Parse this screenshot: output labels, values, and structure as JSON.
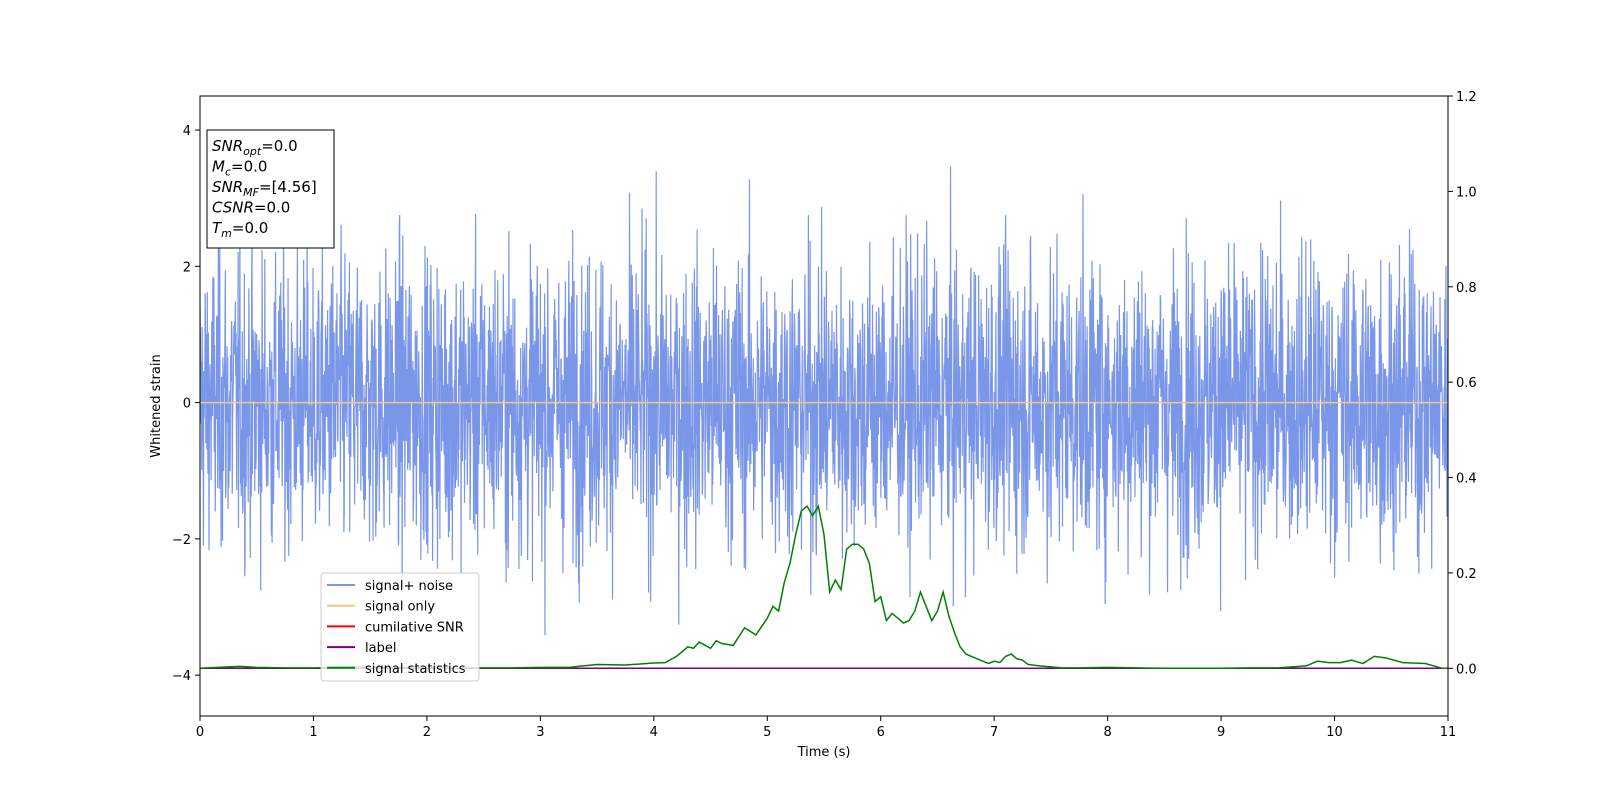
{
  "chart_data": {
    "type": "line",
    "xlabel": "Time (s)",
    "ylabel": "Whitened strain",
    "xlim": [
      0,
      11
    ],
    "ylim_left": [
      -4.6,
      4.5
    ],
    "ylim_right": [
      -0.1,
      1.2
    ],
    "x_ticks": [
      0,
      1,
      2,
      3,
      4,
      5,
      6,
      7,
      8,
      9,
      10,
      11
    ],
    "y_ticks_left": [
      -4,
      -2,
      0,
      2,
      4
    ],
    "y_ticks_right": [
      "0.0",
      "0.2",
      "0.4",
      "0.6",
      "0.8",
      "1.0",
      "1.2"
    ],
    "grid": false,
    "legend_placement": "lower-left",
    "info_box": {
      "placement": "top-left",
      "lines": [
        {
          "base": "SNR",
          "sub": "opt",
          "value": "=0.0"
        },
        {
          "base": "M",
          "sub": "c",
          "value": "=0.0"
        },
        {
          "base": "SNR",
          "sub": "MF",
          "value": "=[4.56]"
        },
        {
          "base": "CSNR",
          "sub": "",
          "value": "=0.0"
        },
        {
          "base": "T",
          "sub": "m",
          "value": "=0.0"
        }
      ]
    },
    "series": [
      {
        "name": "signal+ noise",
        "color": "#7a96e8",
        "axis": "left",
        "description_values": "dense white noise, amplitude about ±2, peaks to about ±4",
        "envelope": {
          "typical_max": 1.4,
          "typical_min": -1.4,
          "extreme_max": 3.9,
          "extreme_min": -4.1
        }
      },
      {
        "name": "signal only",
        "color": "#f5c77e",
        "axis": "left",
        "x": [
          0,
          11
        ],
        "y": [
          0,
          0
        ]
      },
      {
        "name": "cumilative SNR",
        "color": "#ff0000",
        "axis": "right",
        "x": [
          0,
          11
        ],
        "y": [
          0,
          0
        ]
      },
      {
        "name": "label",
        "color": "#800080",
        "axis": "right",
        "x": [
          0,
          11
        ],
        "y": [
          0,
          0
        ]
      },
      {
        "name": "signal statistics",
        "color": "#008000",
        "axis": "right",
        "x": [
          0,
          0.25,
          0.35,
          0.5,
          0.75,
          1.0,
          1.25,
          1.5,
          1.75,
          2.0,
          2.25,
          2.5,
          2.75,
          3.0,
          3.25,
          3.5,
          3.75,
          4.0,
          4.1,
          4.2,
          4.25,
          4.3,
          4.35,
          4.4,
          4.5,
          4.55,
          4.6,
          4.7,
          4.8,
          4.9,
          5.0,
          5.05,
          5.1,
          5.15,
          5.2,
          5.25,
          5.3,
          5.35,
          5.4,
          5.45,
          5.5,
          5.55,
          5.6,
          5.65,
          5.7,
          5.75,
          5.8,
          5.85,
          5.9,
          5.95,
          6.0,
          6.05,
          6.1,
          6.15,
          6.2,
          6.25,
          6.3,
          6.35,
          6.4,
          6.45,
          6.5,
          6.55,
          6.6,
          6.65,
          6.7,
          6.75,
          6.8,
          6.85,
          6.9,
          6.95,
          7.0,
          7.05,
          7.1,
          7.15,
          7.2,
          7.25,
          7.3,
          7.4,
          7.5,
          7.6,
          7.75,
          8.0,
          8.25,
          8.5,
          8.75,
          9.0,
          9.25,
          9.5,
          9.75,
          9.85,
          9.95,
          10.05,
          10.15,
          10.25,
          10.35,
          10.45,
          10.6,
          10.8,
          10.95,
          11.0
        ],
        "y": [
          0.0,
          0.003,
          0.004,
          0.002,
          0.001,
          0.001,
          0.002,
          0.003,
          0.002,
          0.001,
          0.001,
          0.001,
          0.001,
          0.002,
          0.002,
          0.008,
          0.007,
          0.011,
          0.012,
          0.025,
          0.035,
          0.045,
          0.042,
          0.055,
          0.042,
          0.058,
          0.052,
          0.048,
          0.085,
          0.07,
          0.105,
          0.13,
          0.12,
          0.18,
          0.22,
          0.28,
          0.33,
          0.34,
          0.32,
          0.34,
          0.28,
          0.16,
          0.185,
          0.165,
          0.25,
          0.26,
          0.26,
          0.25,
          0.22,
          0.14,
          0.15,
          0.1,
          0.115,
          0.105,
          0.095,
          0.1,
          0.12,
          0.16,
          0.13,
          0.1,
          0.12,
          0.16,
          0.11,
          0.075,
          0.045,
          0.03,
          0.025,
          0.02,
          0.015,
          0.01,
          0.015,
          0.012,
          0.025,
          0.03,
          0.02,
          0.017,
          0.008,
          0.005,
          0.003,
          0.001,
          0.001,
          0.002,
          0.001,
          0.0,
          0.0,
          0.0,
          0.001,
          0.001,
          0.005,
          0.015,
          0.012,
          0.012,
          0.017,
          0.01,
          0.025,
          0.022,
          0.012,
          0.01,
          0.0,
          0.0
        ]
      }
    ]
  }
}
